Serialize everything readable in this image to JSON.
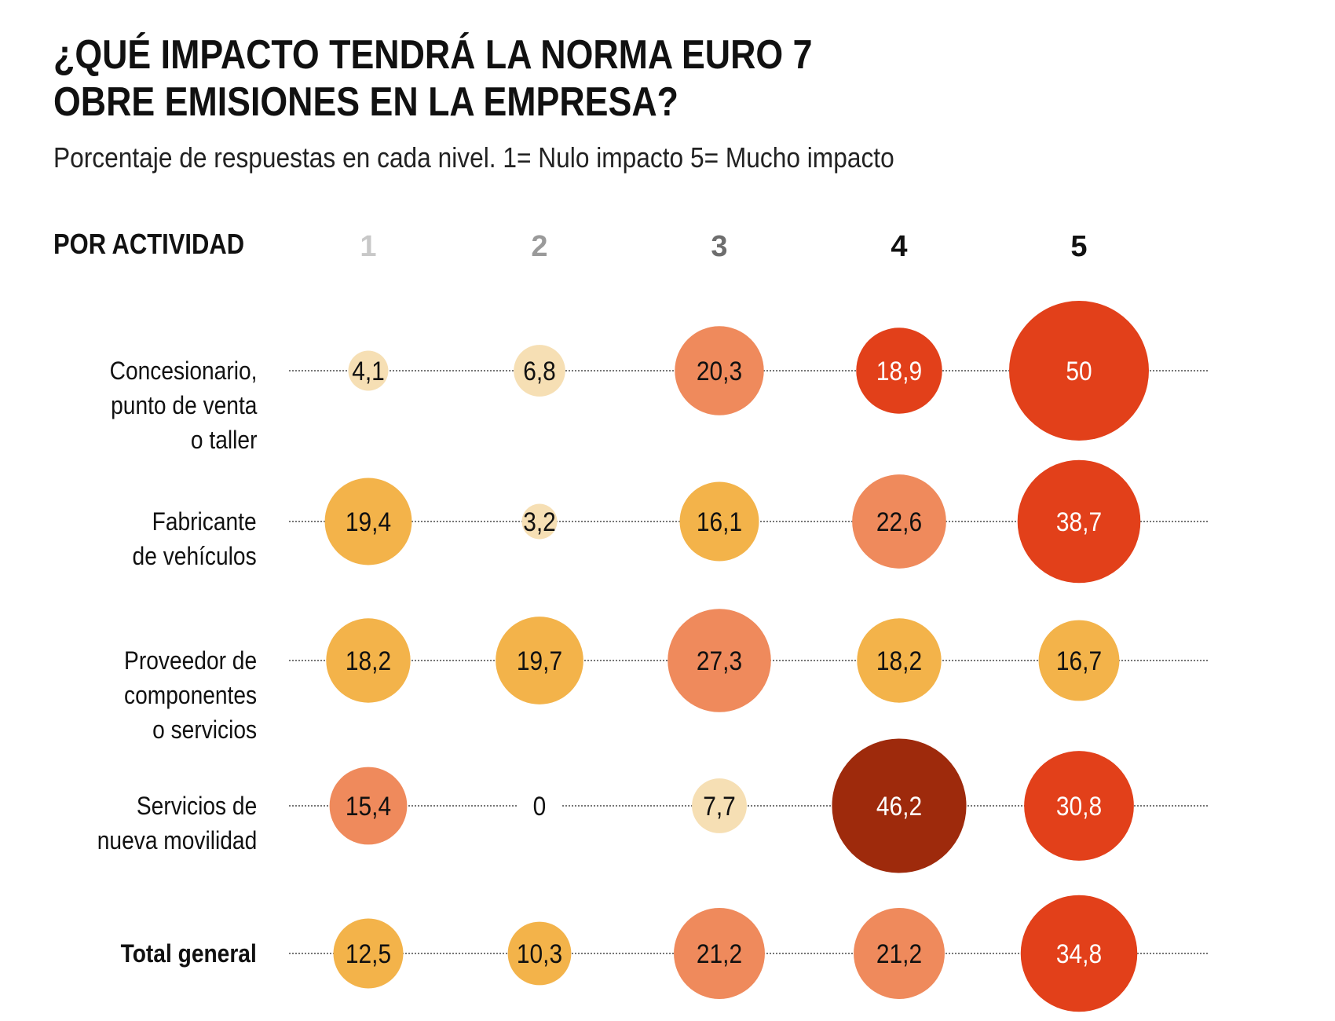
{
  "chart_data": {
    "type": "bubble",
    "title_lines": [
      "¿QUÉ IMPACTO TENDRÁ LA NORMA EURO 7",
      "OBRE EMISIONES EN LA EMPRESA?"
    ],
    "subtitle": "Porcentaje de respuestas en cada nivel. 1= Nulo impacto 5= Mucho impacto",
    "section_label": "POR ACTIVIDAD",
    "categories": [
      "1",
      "2",
      "3",
      "4",
      "5"
    ],
    "category_colors": [
      "#c8c8c8",
      "#9a9a9a",
      "#6e6e6e",
      "#111111",
      "#111111"
    ],
    "rows": [
      {
        "label": "Concesionario,\npunto de venta\no taller",
        "bold": false,
        "values": [
          4.1,
          6.8,
          20.3,
          18.9,
          50
        ],
        "display": [
          "4,1",
          "6,8",
          "20,3",
          "18,9",
          "50"
        ],
        "colors": [
          "#f6dfb4",
          "#f6dfb4",
          "#ef8a5c",
          "#e2401a",
          "#e2401a"
        ]
      },
      {
        "label": "Fabricante\nde vehículos",
        "bold": false,
        "values": [
          19.4,
          3.2,
          16.1,
          22.6,
          38.7
        ],
        "display": [
          "19,4",
          "3,2",
          "16,1",
          "22,6",
          "38,7"
        ],
        "colors": [
          "#f3b34a",
          "#f6dfb4",
          "#f3b34a",
          "#ef8a5c",
          "#e2401a"
        ]
      },
      {
        "label": "Proveedor de\ncomponentes\no servicios",
        "bold": false,
        "values": [
          18.2,
          19.7,
          27.3,
          18.2,
          16.7
        ],
        "display": [
          "18,2",
          "19,7",
          "27,3",
          "18,2",
          "16,7"
        ],
        "colors": [
          "#f3b34a",
          "#f3b34a",
          "#ef8a5c",
          "#f3b34a",
          "#f3b34a"
        ]
      },
      {
        "label": "Servicios de\nnueva movilidad",
        "bold": false,
        "values": [
          15.4,
          0,
          7.7,
          46.2,
          30.8
        ],
        "display": [
          "15,4",
          "0",
          "7,7",
          "46,2",
          "30,8"
        ],
        "colors": [
          "#ef8a5c",
          "#ffffff",
          "#f6dfb4",
          "#9e2a0c",
          "#e2401a"
        ]
      },
      {
        "label": "Total general",
        "bold": true,
        "values": [
          12.5,
          10.3,
          21.2,
          21.2,
          34.8
        ],
        "display": [
          "12,5",
          "10,3",
          "21,2",
          "21,2",
          "34,8"
        ],
        "colors": [
          "#f3b34a",
          "#f3b34a",
          "#ef8a5c",
          "#ef8a5c",
          "#e2401a"
        ]
      }
    ]
  }
}
